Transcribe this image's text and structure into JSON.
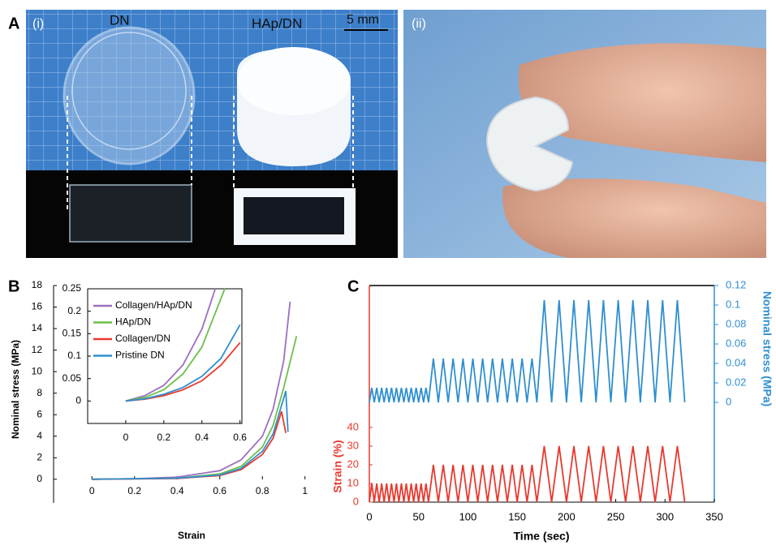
{
  "figure": {
    "panel_a": {
      "label": "A",
      "part_i": "(i)",
      "dn": "DN",
      "hap_dn": "HAp/DN",
      "scale": "5 mm",
      "part_ii": "(ii)"
    },
    "panel_b_label": "B",
    "panel_c_label": "C"
  },
  "chart_data": [
    {
      "type": "line",
      "x_label": "Strain",
      "y_label": "Nominal stress (MPa)",
      "xlim": [
        -0.18,
        1.02
      ],
      "xticks": [
        0,
        0.2,
        0.4,
        0.6,
        0.8,
        1
      ],
      "ylim": [
        -2.2,
        18
      ],
      "yticks": [
        0,
        2,
        4,
        6,
        8,
        10,
        12,
        14,
        16,
        18
      ],
      "series": [
        {
          "color": "#9b6fbf",
          "x": [
            0,
            0.2,
            0.4,
            0.6,
            0.7,
            0.8,
            0.85,
            0.9,
            0.93
          ],
          "values": [
            0,
            0.05,
            0.2,
            0.8,
            1.8,
            4.0,
            6.5,
            11,
            16.5
          ]
        },
        {
          "color": "#6cc04a",
          "x": [
            0,
            0.4,
            0.6,
            0.7,
            0.8,
            0.85,
            0.9,
            0.96
          ],
          "values": [
            0,
            0.1,
            0.5,
            1.2,
            3.0,
            5,
            8.5,
            13.3
          ]
        },
        {
          "color": "#e8392f",
          "x": [
            0,
            0.4,
            0.6,
            0.7,
            0.8,
            0.85,
            0.89,
            0.91
          ],
          "values": [
            0,
            0.08,
            0.35,
            0.9,
            2.3,
            3.8,
            6.3,
            4.3
          ]
        },
        {
          "color": "#2f8fd0",
          "x": [
            0,
            0.4,
            0.6,
            0.7,
            0.8,
            0.85,
            0.91,
            0.92
          ],
          "values": [
            0,
            0.1,
            0.4,
            1.0,
            2.6,
            4.2,
            8.2,
            4.4
          ]
        }
      ]
    },
    {
      "type": "line",
      "xlim": [
        -0.2,
        0.61
      ],
      "xticks": [
        0,
        0.2,
        0.4,
        0.6
      ],
      "ylim": [
        -0.05,
        0.25
      ],
      "yticks": [
        0,
        0.05,
        0.1,
        0.15,
        0.2,
        0.25
      ],
      "series": [
        {
          "name": "Collagen/HAp/DN",
          "color": "#9b6fbf",
          "x": [
            0,
            0.1,
            0.2,
            0.3,
            0.4,
            0.47
          ],
          "values": [
            0,
            0.012,
            0.035,
            0.08,
            0.16,
            0.25
          ]
        },
        {
          "name": "HAp/DN",
          "color": "#6cc04a",
          "x": [
            0,
            0.1,
            0.2,
            0.3,
            0.4,
            0.52
          ],
          "values": [
            0,
            0.008,
            0.025,
            0.06,
            0.12,
            0.25
          ]
        },
        {
          "name": "Collagen/DN",
          "color": "#e8392f",
          "x": [
            0,
            0.1,
            0.2,
            0.3,
            0.4,
            0.5,
            0.6
          ],
          "values": [
            0,
            0.004,
            0.012,
            0.025,
            0.045,
            0.08,
            0.13
          ]
        },
        {
          "name": "Pristine DN",
          "color": "#2f8fd0",
          "x": [
            0,
            0.1,
            0.2,
            0.3,
            0.4,
            0.5,
            0.6
          ],
          "values": [
            0,
            0.005,
            0.015,
            0.03,
            0.055,
            0.095,
            0.17
          ]
        }
      ]
    },
    {
      "type": "line",
      "x_label": "Time (sec)",
      "y_label": "Strain (%)",
      "y2_label": "Nominal stress (MPa)",
      "xlim": [
        0,
        350
      ],
      "xticks": [
        0,
        50,
        100,
        150,
        200,
        250,
        300,
        350
      ],
      "ylim": [
        0,
        116
      ],
      "yticks": [
        0,
        10,
        20,
        30,
        40
      ],
      "y2lim": [
        -0.1025,
        0.12
      ],
      "y2ticks": [
        0,
        0.02,
        0.04,
        0.06,
        0.08,
        0.1,
        0.12
      ],
      "x": [
        0,
        2.5,
        5,
        7.5,
        10,
        12.5,
        15,
        17.5,
        20,
        22.5,
        25,
        27.5,
        30,
        32.5,
        35,
        37.5,
        40,
        42.5,
        45,
        47.5,
        50,
        52.5,
        55,
        57.5,
        60,
        65,
        70,
        75,
        80,
        85,
        90,
        95,
        100,
        105,
        110,
        115,
        120,
        125,
        130,
        135,
        140,
        145,
        150,
        155,
        160,
        165,
        170,
        177.5,
        185,
        192.5,
        200,
        207.5,
        215,
        222.5,
        230,
        237.5,
        245,
        252.5,
        260,
        267.5,
        275,
        282.5,
        290,
        297.5,
        305,
        312.5,
        320
      ],
      "series": [
        {
          "color": "#e8392f",
          "values": [
            0,
            10,
            0,
            10,
            0,
            10,
            0,
            10,
            0,
            10,
            0,
            10,
            0,
            10,
            0,
            10,
            0,
            10,
            0,
            10,
            0,
            10,
            0,
            10,
            0,
            20,
            0,
            20,
            0,
            20,
            0,
            20,
            0,
            20,
            0,
            20,
            0,
            20,
            0,
            20,
            0,
            20,
            0,
            20,
            0,
            20,
            0,
            30,
            0,
            30,
            0,
            30,
            0,
            30,
            0,
            30,
            0,
            30,
            0,
            30,
            0,
            30,
            0,
            30,
            0,
            30,
            0
          ]
        },
        {
          "color": "#2f8fd0",
          "axis": "y2",
          "values": [
            0,
            0.015,
            0,
            0.015,
            0,
            0.015,
            0,
            0.015,
            0,
            0.015,
            0,
            0.015,
            0,
            0.015,
            0,
            0.015,
            0,
            0.015,
            0,
            0.015,
            0,
            0.015,
            0,
            0.015,
            0,
            0.045,
            0,
            0.045,
            0,
            0.045,
            0,
            0.045,
            0,
            0.045,
            0,
            0.045,
            0,
            0.045,
            0,
            0.045,
            0,
            0.045,
            0,
            0.045,
            0,
            0.045,
            0,
            0.105,
            0,
            0.105,
            0,
            0.105,
            0,
            0.105,
            0,
            0.105,
            0,
            0.105,
            0,
            0.105,
            0,
            0.105,
            0,
            0.105,
            0,
            0.105,
            0
          ]
        }
      ]
    }
  ]
}
